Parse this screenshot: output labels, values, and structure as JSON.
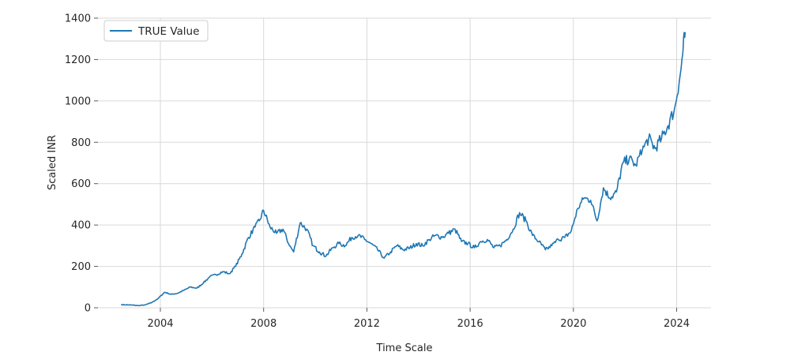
{
  "chart_data": {
    "type": "line",
    "title": "",
    "xlabel": "Time Scale",
    "ylabel": "Scaled INR",
    "xlim": [
      "2001-08-01",
      "2025-05-01"
    ],
    "ylim": [
      -40,
      1400
    ],
    "xticks": [
      "2004",
      "2008",
      "2012",
      "2016",
      "2020",
      "2024"
    ],
    "yticks": [
      0,
      200,
      400,
      600,
      800,
      1000,
      1200,
      1400
    ],
    "grid": true,
    "legend_position": "top-left",
    "series": [
      {
        "name": "TRUE Value",
        "color": "#1f77b4",
        "points": [
          [
            "2002-07-01",
            15
          ],
          [
            "2002-12-01",
            13
          ],
          [
            "2003-03-01",
            10
          ],
          [
            "2003-06-01",
            14
          ],
          [
            "2003-09-01",
            25
          ],
          [
            "2003-12-01",
            45
          ],
          [
            "2004-03-01",
            75
          ],
          [
            "2004-06-01",
            65
          ],
          [
            "2004-09-01",
            70
          ],
          [
            "2004-12-01",
            85
          ],
          [
            "2005-03-01",
            100
          ],
          [
            "2005-06-01",
            95
          ],
          [
            "2005-09-01",
            120
          ],
          [
            "2005-12-01",
            150
          ],
          [
            "2006-03-01",
            160
          ],
          [
            "2006-06-01",
            175
          ],
          [
            "2006-09-01",
            165
          ],
          [
            "2006-12-01",
            200
          ],
          [
            "2007-03-01",
            260
          ],
          [
            "2007-06-01",
            340
          ],
          [
            "2007-09-01",
            390
          ],
          [
            "2007-11-01",
            420
          ],
          [
            "2008-01-01",
            470
          ],
          [
            "2008-04-01",
            390
          ],
          [
            "2008-07-01",
            360
          ],
          [
            "2008-10-01",
            380
          ],
          [
            "2009-01-01",
            300
          ],
          [
            "2009-03-01",
            270
          ],
          [
            "2009-06-01",
            410
          ],
          [
            "2009-09-01",
            380
          ],
          [
            "2009-12-01",
            300
          ],
          [
            "2010-03-01",
            270
          ],
          [
            "2010-06-01",
            250
          ],
          [
            "2010-09-01",
            290
          ],
          [
            "2010-12-01",
            310
          ],
          [
            "2011-03-01",
            300
          ],
          [
            "2011-06-01",
            340
          ],
          [
            "2011-09-01",
            350
          ],
          [
            "2011-12-01",
            330
          ],
          [
            "2012-03-01",
            310
          ],
          [
            "2012-06-01",
            280
          ],
          [
            "2012-09-01",
            240
          ],
          [
            "2012-12-01",
            270
          ],
          [
            "2013-03-01",
            300
          ],
          [
            "2013-06-01",
            280
          ],
          [
            "2013-09-01",
            290
          ],
          [
            "2013-12-01",
            310
          ],
          [
            "2014-03-01",
            300
          ],
          [
            "2014-06-01",
            330
          ],
          [
            "2014-09-01",
            350
          ],
          [
            "2014-12-01",
            340
          ],
          [
            "2015-03-01",
            360
          ],
          [
            "2015-06-01",
            380
          ],
          [
            "2015-09-01",
            320
          ],
          [
            "2015-12-01",
            310
          ],
          [
            "2016-03-01",
            290
          ],
          [
            "2016-06-01",
            320
          ],
          [
            "2016-09-01",
            330
          ],
          [
            "2016-12-01",
            290
          ],
          [
            "2017-03-01",
            300
          ],
          [
            "2017-06-01",
            330
          ],
          [
            "2017-09-01",
            380
          ],
          [
            "2017-12-01",
            460
          ],
          [
            "2018-03-01",
            420
          ],
          [
            "2018-06-01",
            350
          ],
          [
            "2018-09-01",
            320
          ],
          [
            "2018-12-01",
            280
          ],
          [
            "2019-03-01",
            300
          ],
          [
            "2019-06-01",
            330
          ],
          [
            "2019-09-01",
            340
          ],
          [
            "2019-12-01",
            370
          ],
          [
            "2020-03-01",
            480
          ],
          [
            "2020-06-01",
            530
          ],
          [
            "2020-09-01",
            520
          ],
          [
            "2020-12-01",
            420
          ],
          [
            "2021-03-01",
            580
          ],
          [
            "2021-06-01",
            530
          ],
          [
            "2021-09-01",
            560
          ],
          [
            "2021-12-01",
            700
          ],
          [
            "2022-03-01",
            720
          ],
          [
            "2022-06-01",
            690
          ],
          [
            "2022-09-01",
            760
          ],
          [
            "2022-12-01",
            820
          ],
          [
            "2023-03-01",
            770
          ],
          [
            "2023-06-01",
            820
          ],
          [
            "2023-09-01",
            880
          ],
          [
            "2023-12-01",
            960
          ],
          [
            "2024-03-01",
            1150
          ],
          [
            "2024-04-01",
            1250
          ],
          [
            "2024-05-01",
            1330
          ]
        ]
      }
    ]
  }
}
